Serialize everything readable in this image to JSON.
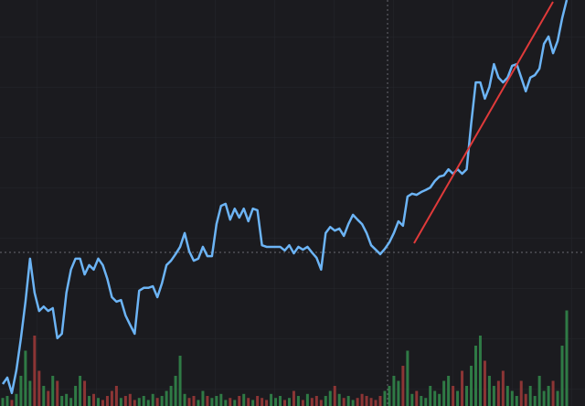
{
  "chart_data": {
    "type": "line",
    "color": "#6cb4f5",
    "ylim": [
      0,
      100
    ],
    "values": [
      5.4,
      7.0,
      3.2,
      8.8,
      16.7,
      25.7,
      36.3,
      27.9,
      23.4,
      24.5,
      23.4,
      24.1,
      16.7,
      17.8,
      27.9,
      33.6,
      36.3,
      36.3,
      32.4,
      34.7,
      33.6,
      36.3,
      34.7,
      31.3,
      26.8,
      25.7,
      26.1,
      22.3,
      20.0,
      17.8,
      28.4,
      29.1,
      29.1,
      29.5,
      26.8,
      30.2,
      34.7,
      35.8,
      37.4,
      39.2,
      42.6,
      38.1,
      35.8,
      36.3,
      39.2,
      36.9,
      36.9,
      44.8,
      49.3,
      49.8,
      45.9,
      48.6,
      46.4,
      48.6,
      45.5,
      48.6,
      48.2,
      39.6,
      39.2,
      39.2,
      39.2,
      39.2,
      38.3,
      39.6,
      37.6,
      39.2,
      38.5,
      39.2,
      37.8,
      36.5,
      33.6,
      42.6,
      44.1,
      43.2,
      43.7,
      41.9,
      44.8,
      47.1,
      45.9,
      44.8,
      42.6,
      39.6,
      38.5,
      37.4,
      38.7,
      40.3,
      42.6,
      45.5,
      44.4,
      51.6,
      52.3,
      52.0,
      52.7,
      53.2,
      53.8,
      55.4,
      56.5,
      56.8,
      58.3,
      57.2,
      58.3,
      57.2,
      58.3,
      69.6,
      79.7,
      79.7,
      75.7,
      78.6,
      84.2,
      80.9,
      79.7,
      80.9,
      83.8,
      84.2,
      80.9,
      77.5,
      80.9,
      81.5,
      83.1,
      89.2,
      91.0,
      86.9,
      89.9,
      95.5,
      100
    ],
    "volume": {
      "ylim": [
        0,
        100
      ],
      "up_color": "#2f7a45",
      "down_color": "#8c3535",
      "values": [
        8,
        10,
        6,
        12,
        30,
        55,
        25,
        70,
        35,
        20,
        15,
        30,
        25,
        10,
        12,
        8,
        20,
        30,
        25,
        10,
        12,
        8,
        6,
        10,
        15,
        20,
        8,
        10,
        12,
        6,
        8,
        10,
        6,
        12,
        8,
        10,
        15,
        20,
        30,
        50,
        12,
        8,
        10,
        6,
        15,
        10,
        8,
        10,
        12,
        6,
        8,
        6,
        10,
        12,
        8,
        6,
        10,
        8,
        6,
        12,
        8,
        10,
        6,
        8,
        15,
        10,
        6,
        12,
        8,
        10,
        6,
        10,
        15,
        20,
        12,
        8,
        10,
        6,
        8,
        12,
        10,
        8,
        6,
        10,
        15,
        20,
        30,
        25,
        40,
        55,
        12,
        15,
        10,
        8,
        20,
        15,
        12,
        25,
        30,
        20,
        15,
        35,
        20,
        40,
        60,
        70,
        45,
        30,
        20,
        25,
        35,
        20,
        15,
        10,
        25,
        12,
        20,
        10,
        30,
        15,
        20,
        25,
        15,
        60,
        95
      ]
    }
  }
}
